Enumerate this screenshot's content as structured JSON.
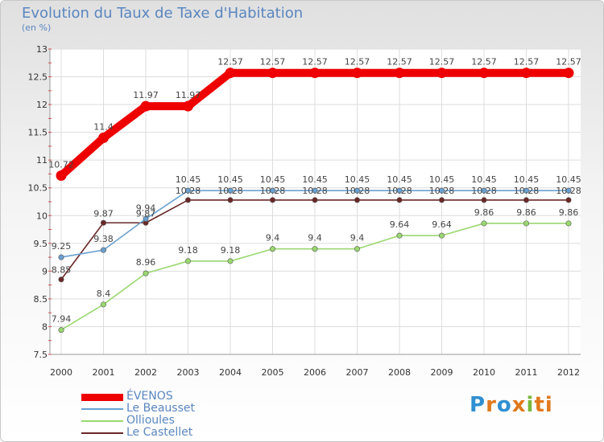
{
  "chart_data": {
    "type": "line",
    "title": "Evolution du Taux de Taxe d'Habitation",
    "ylabel": "(en %)",
    "xlabel": "",
    "ylim": [
      7.5,
      13
    ],
    "yticks": [
      "7.5",
      "8",
      "8.5",
      "9",
      "9.5",
      "10",
      "10.5",
      "11",
      "11.5",
      "12",
      "12.5",
      "13"
    ],
    "categories": [
      "2000",
      "2001",
      "2002",
      "2003",
      "2004",
      "2005",
      "2006",
      "2007",
      "2008",
      "2009",
      "2010",
      "2011",
      "2012"
    ],
    "series": [
      {
        "name": "ÉVENOS",
        "color": "#ee0000",
        "values": [
          10.72,
          11.4,
          11.97,
          11.97,
          12.57,
          12.57,
          12.57,
          12.57,
          12.57,
          12.57,
          12.57,
          12.57,
          12.57
        ],
        "labels": [
          "10.72",
          "11.4",
          "11.97",
          "11.97",
          "12.57",
          "12.57",
          "12.57",
          "12.57",
          "12.57",
          "12.57",
          "12.57",
          "12.57",
          "12.57"
        ]
      },
      {
        "name": "Le Beausset",
        "color": "#6aa0d0",
        "values": [
          9.25,
          9.38,
          9.94,
          10.45,
          10.45,
          10.45,
          10.45,
          10.45,
          10.45,
          10.45,
          10.45,
          10.45,
          10.45
        ],
        "labels": [
          "9.25",
          "9.38",
          "9.94",
          "10.45",
          "10.45",
          "10.45",
          "10.45",
          "10.45",
          "10.45",
          "10.45",
          "10.45",
          "10.45",
          "10.45"
        ]
      },
      {
        "name": "Ollioules",
        "color": "#9ad870",
        "values": [
          7.94,
          8.4,
          8.96,
          9.18,
          9.18,
          9.4,
          9.4,
          9.4,
          9.64,
          9.64,
          9.86,
          9.86,
          9.86
        ],
        "labels": [
          "7.94",
          "8.4",
          "8.96",
          "9.18",
          "9.18",
          "9.4",
          "9.4",
          "9.4",
          "9.64",
          "9.64",
          "9.86",
          "9.86",
          "9.86"
        ]
      },
      {
        "name": "Le Castellet",
        "color": "#6a2828",
        "values": [
          8.85,
          9.87,
          9.87,
          10.28,
          10.28,
          10.28,
          10.28,
          10.28,
          10.28,
          10.28,
          10.28,
          10.28,
          10.28
        ],
        "labels": [
          "8.85",
          "9.87",
          "9.87",
          "10.28",
          "10.28",
          "10.28",
          "10.28",
          "10.28",
          "10.28",
          "10.28",
          "10.28",
          "10.28",
          "10.28"
        ]
      }
    ]
  },
  "logo": {
    "chars": [
      "P",
      "r",
      "o",
      "x",
      "i",
      "ti"
    ]
  }
}
